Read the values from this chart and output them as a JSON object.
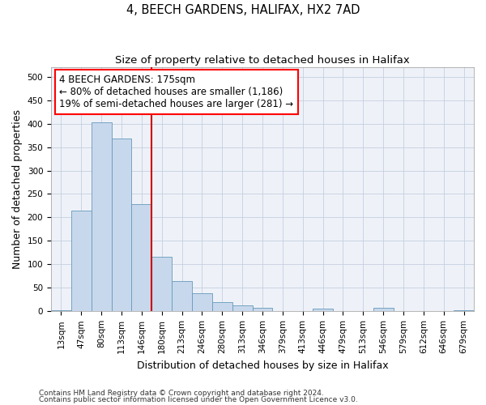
{
  "title": "4, BEECH GARDENS, HALIFAX, HX2 7AD",
  "subtitle": "Size of property relative to detached houses in Halifax",
  "xlabel": "Distribution of detached houses by size in Halifax",
  "ylabel": "Number of detached properties",
  "bar_color": "#c8d8ec",
  "bar_edge_color": "#6699bb",
  "background_color": "#eef2f8",
  "grid_color": "#c5cfe0",
  "vline_color": "#cc0000",
  "categories": [
    "13sqm",
    "47sqm",
    "80sqm",
    "113sqm",
    "146sqm",
    "180sqm",
    "213sqm",
    "246sqm",
    "280sqm",
    "313sqm",
    "346sqm",
    "379sqm",
    "413sqm",
    "446sqm",
    "479sqm",
    "513sqm",
    "546sqm",
    "579sqm",
    "612sqm",
    "646sqm",
    "679sqm"
  ],
  "values": [
    2,
    214,
    403,
    368,
    228,
    117,
    65,
    38,
    20,
    13,
    8,
    0,
    0,
    6,
    0,
    0,
    7,
    0,
    0,
    0,
    2
  ],
  "ylim": [
    0,
    520
  ],
  "yticks": [
    0,
    50,
    100,
    150,
    200,
    250,
    300,
    350,
    400,
    450,
    500
  ],
  "vline_pos": 4.5,
  "annotation_title": "4 BEECH GARDENS: 175sqm",
  "annotation_line1": "← 80% of detached houses are smaller (1,186)",
  "annotation_line2": "19% of semi-detached houses are larger (281) →",
  "footer1": "Contains HM Land Registry data © Crown copyright and database right 2024.",
  "footer2": "Contains public sector information licensed under the Open Government Licence v3.0.",
  "title_fontsize": 10.5,
  "subtitle_fontsize": 9.5,
  "axis_label_fontsize": 9,
  "tick_fontsize": 7.5,
  "annotation_fontsize": 8.5,
  "footer_fontsize": 6.5
}
